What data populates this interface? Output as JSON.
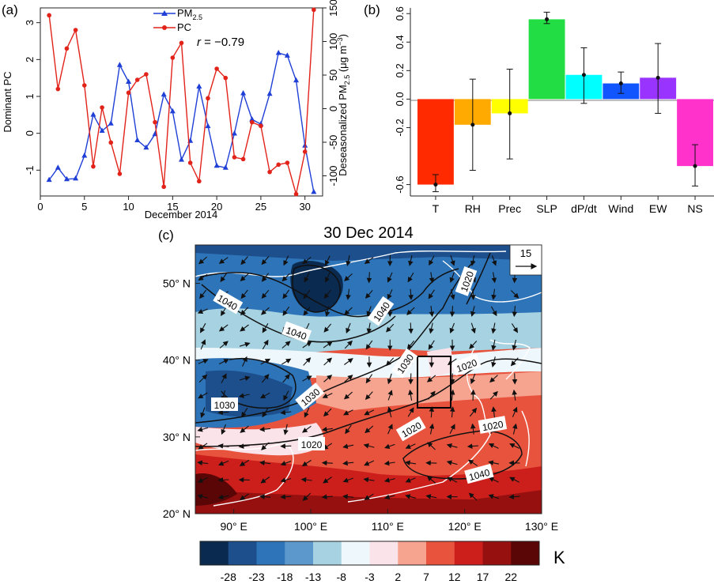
{
  "chart_data": [
    {
      "panel_label": "(a)",
      "type": "line",
      "xlabel": "December 2014",
      "x_ticks": [
        0,
        5,
        10,
        15,
        20,
        25,
        30
      ],
      "xlim": [
        0,
        32
      ],
      "ylabel_left": "Dominant PC",
      "y_ticks_left": [
        -1,
        0,
        1,
        2,
        3
      ],
      "ylim_left": [
        -1.7,
        3.4
      ],
      "ylabel_right_text": "Deseasonalized PM",
      "ylabel_right_sub": "2.5",
      "ylabel_right_unit": " (μg m",
      "ylabel_right_sup": "−3",
      "ylabel_right_close": ")",
      "y_ticks_right": [
        -100,
        -50,
        0,
        50,
        100,
        150
      ],
      "ylim_right": [
        -130,
        150
      ],
      "annotation": "r = −0.79",
      "annotation_r": "r",
      "annotation_rest": " = −0.79",
      "legend_position": "top-center",
      "series": [
        {
          "name": "PM",
          "name_sub": "2.5",
          "axis": "right",
          "color": "#1f3fd6",
          "marker": "triangle",
          "x": [
            1,
            2,
            3,
            4,
            5,
            6,
            7,
            8,
            9,
            10,
            11,
            12,
            13,
            14,
            15,
            16,
            17,
            18,
            19,
            20,
            21,
            22,
            23,
            24,
            25,
            26,
            27,
            28,
            29,
            30,
            31
          ],
          "values": [
            -106,
            -88,
            -105,
            -104,
            -70,
            -9,
            -33,
            -22,
            65,
            40,
            -47,
            -58,
            -38,
            21,
            -4,
            -76,
            -48,
            33,
            -26,
            -85,
            -88,
            -37,
            23,
            -16,
            -23,
            22,
            83,
            79,
            42,
            -55,
            -124
          ]
        },
        {
          "name": "PC",
          "axis": "left",
          "color": "#e2231a",
          "marker": "circle",
          "x": [
            1,
            2,
            3,
            4,
            5,
            6,
            7,
            8,
            9,
            10,
            11,
            12,
            13,
            14,
            15,
            16,
            17,
            18,
            19,
            20,
            21,
            22,
            23,
            24,
            25,
            26,
            27,
            28,
            29,
            30,
            31
          ],
          "values": [
            3.2,
            1.2,
            2.3,
            2.8,
            1.3,
            -0.9,
            0.7,
            -0.25,
            -1.1,
            1.1,
            1.45,
            1.6,
            0.3,
            -1.45,
            2.05,
            2.45,
            -0.8,
            -1.3,
            0.95,
            1.75,
            1.5,
            -0.65,
            -0.7,
            0.3,
            0.2,
            -1.05,
            -0.85,
            -0.8,
            -1.65,
            -0.5,
            3.35
          ]
        }
      ]
    },
    {
      "panel_label": "(b)",
      "type": "bar",
      "categories": [
        "T",
        "RH",
        "Prec",
        "SLP",
        "dP/dt",
        "Wind",
        "EW",
        "NS"
      ],
      "values": [
        -0.6,
        -0.18,
        -0.1,
        0.56,
        0.17,
        0.11,
        0.15,
        -0.47
      ],
      "err_low": [
        -0.65,
        -0.5,
        -0.42,
        0.53,
        -0.03,
        0.04,
        -0.1,
        -0.61
      ],
      "err_high": [
        -0.53,
        0.14,
        0.21,
        0.61,
        0.36,
        0.19,
        0.39,
        -0.32
      ],
      "colors": [
        "#ff2a00",
        "#ffaa00",
        "#ffff00",
        "#22dd44",
        "#00ffff",
        "#1155ff",
        "#9933ff",
        "#ff33cc"
      ],
      "y_ticks": [
        -0.6,
        -0.2,
        0.0,
        0.2,
        0.4,
        0.6
      ],
      "y_tick_labels": [
        "-0.6",
        "-0.2",
        "0.0",
        "0.2",
        "0.4",
        "0.6"
      ],
      "ylim": [
        -0.68,
        0.64
      ],
      "xlabel": "",
      "ylabel": ""
    },
    {
      "panel_label": "(c)",
      "type": "heatmap",
      "title": "30 Dec 2014",
      "lon_ticks": [
        "90° E",
        "100° E",
        "110° E",
        "120° E",
        "130° E"
      ],
      "lat_ticks": [
        "50° N",
        "40° N",
        "30° N",
        "20° N"
      ],
      "lon_range": [
        85,
        130
      ],
      "lat_range": [
        20,
        55
      ],
      "colorbar_unit": "K",
      "colorbar_ticks": [
        "-28",
        "-23",
        "-18",
        "-13",
        "-8",
        "-3",
        "2",
        "7",
        "12",
        "17",
        "22"
      ],
      "colorbar_colors": [
        "#0b2a50",
        "#1c4f8c",
        "#2e74b8",
        "#5d98cc",
        "#a6d2e2",
        "#eef7fb",
        "#fbe3ea",
        "#f6a38f",
        "#e8533e",
        "#cc1f1c",
        "#961010",
        "#5a0606"
      ],
      "reference_vector_label": "15",
      "isobar_labels": [
        "1040",
        "1040",
        "1040",
        "1040",
        "1030",
        "1030",
        "1030",
        "1020",
        "1020",
        "1020",
        "1020",
        "1020"
      ],
      "box_lon": [
        114,
        119
      ],
      "box_lat": [
        36,
        42
      ]
    }
  ]
}
